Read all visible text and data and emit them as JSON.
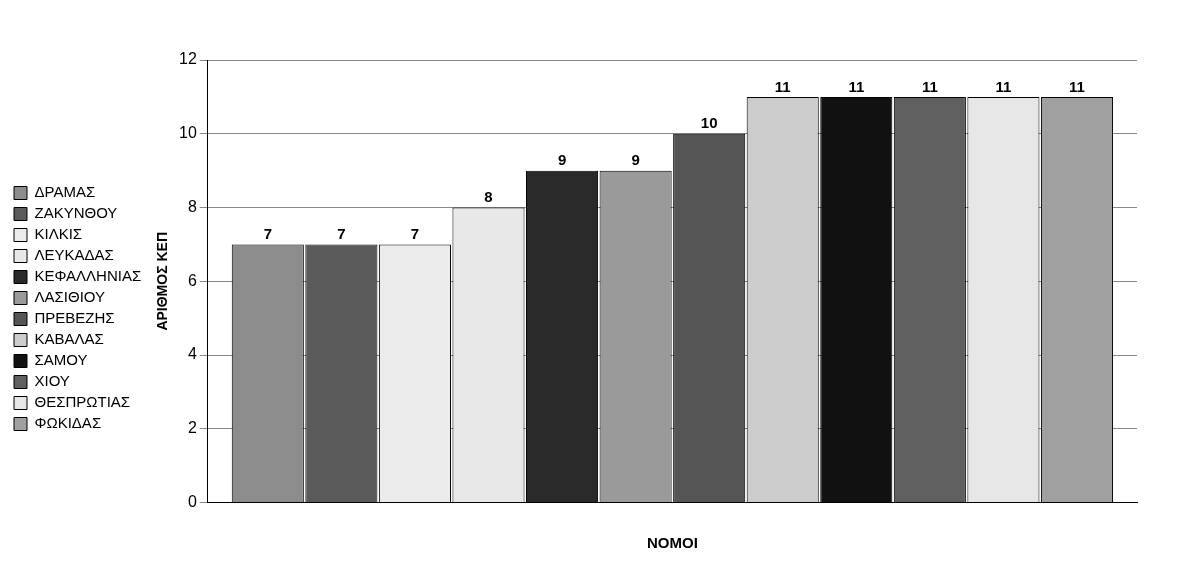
{
  "chart_data": {
    "type": "bar",
    "xlabel": "ΝΟΜΟΙ",
    "ylabel": "ΑΡΙΘΜΟΣ ΚΕΠ",
    "categories": [
      null
    ],
    "series": [
      {
        "name": "ΔΡΑΜΑΣ",
        "color": "#8c8c8c",
        "values": [
          7
        ]
      },
      {
        "name": "ΖΑΚΥΝΘΟΥ",
        "color": "#5a5a5a",
        "values": [
          7
        ]
      },
      {
        "name": "ΚΙΛΚΙΣ",
        "color": "#ebebeb",
        "values": [
          7
        ]
      },
      {
        "name": "ΛΕΥΚΑΔΑΣ",
        "color": "#e8e8e8",
        "values": [
          8
        ]
      },
      {
        "name": "ΚΕΦΑΛΛΗΝΙΑΣ",
        "color": "#2a2a2a",
        "values": [
          9
        ]
      },
      {
        "name": "ΛΑΣΙΘΙΟΥ",
        "color": "#9a9a9a",
        "values": [
          9
        ]
      },
      {
        "name": "ΠΡΕΒΕΖΗΣ",
        "color": "#555555",
        "values": [
          10
        ]
      },
      {
        "name": "ΚΑΒΑΛΑΣ",
        "color": "#cccccc",
        "values": [
          11
        ]
      },
      {
        "name": "ΣΑΜΟΥ",
        "color": "#111111",
        "values": [
          11
        ]
      },
      {
        "name": "ΧΙΟΥ",
        "color": "#5f5f5f",
        "values": [
          11
        ]
      },
      {
        "name": "ΘΕΣΠΡΩΤΙΑΣ",
        "color": "#e6e6e6",
        "values": [
          11
        ]
      },
      {
        "name": "ΦΩΚΙΔΑΣ",
        "color": "#a0a0a0",
        "values": [
          11
        ]
      }
    ],
    "ylim": [
      0,
      12
    ],
    "yticks": [
      0,
      2,
      4,
      6,
      8,
      10,
      12
    ],
    "grid": "y",
    "legend": "left",
    "data_labels": true
  }
}
